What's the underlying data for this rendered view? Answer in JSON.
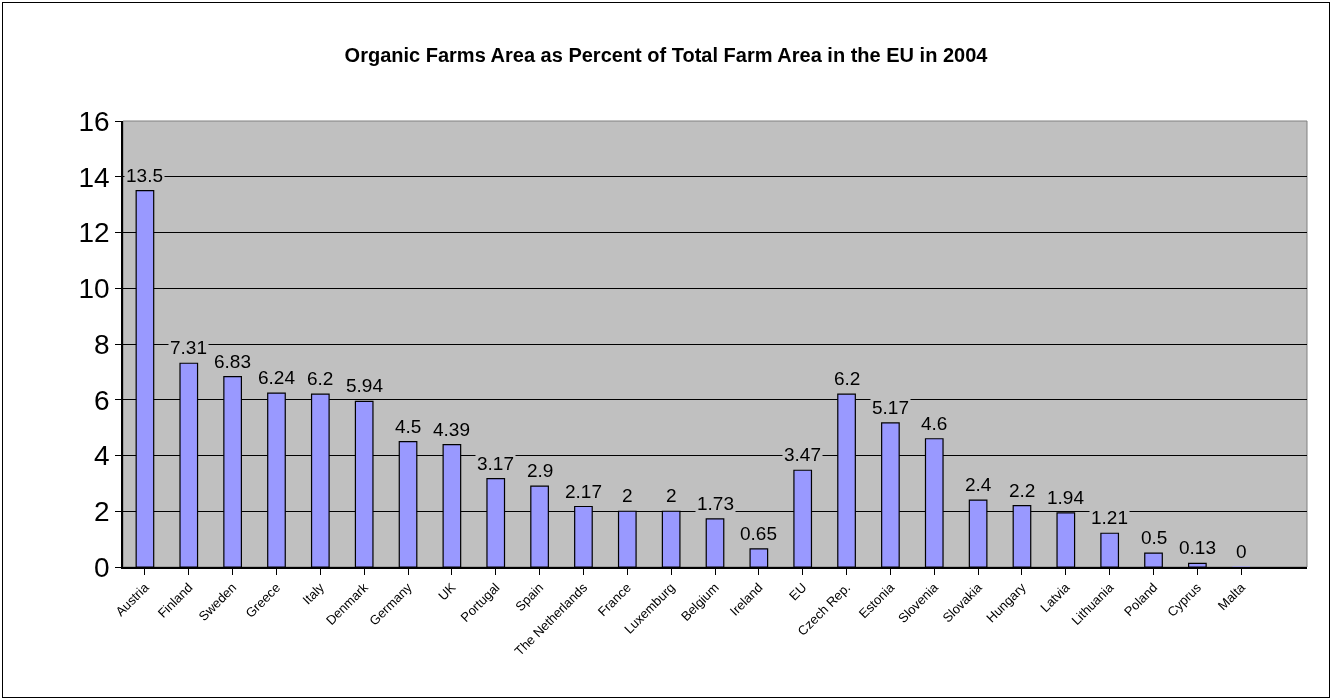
{
  "chart_data": {
    "type": "bar",
    "title": "Organic Farms Area as Percent of Total Farm Area in the EU in 2004",
    "categories": [
      "Austria",
      "Finland",
      "Sweden",
      "Greece",
      "Italy",
      "Denmark",
      "Germany",
      "UK",
      "Portugal",
      "Spain",
      "The Netherlands",
      "France",
      "Luxemburg",
      "Belgium",
      "Ireland",
      "EU",
      "Czech Rep.",
      "Estonia",
      "Slovenia",
      "Slovakia",
      "Hungary",
      "Latvia",
      "Lithuania",
      "Poland",
      "Cyprus",
      "Malta",
      null
    ],
    "values": [
      13.5,
      7.31,
      6.83,
      6.24,
      6.2,
      5.94,
      4.5,
      4.39,
      3.17,
      2.9,
      2.17,
      2,
      2,
      1.73,
      0.65,
      3.47,
      6.2,
      5.17,
      4.6,
      2.4,
      2.2,
      1.94,
      1.21,
      0.5,
      0.13,
      0,
      null
    ],
    "color": "#9999ff",
    "ylim": [
      0,
      16
    ],
    "yticks": [
      0,
      2,
      4,
      6,
      8,
      10,
      12,
      14,
      16
    ],
    "grid": "y",
    "data_labels": true,
    "legend": false
  }
}
